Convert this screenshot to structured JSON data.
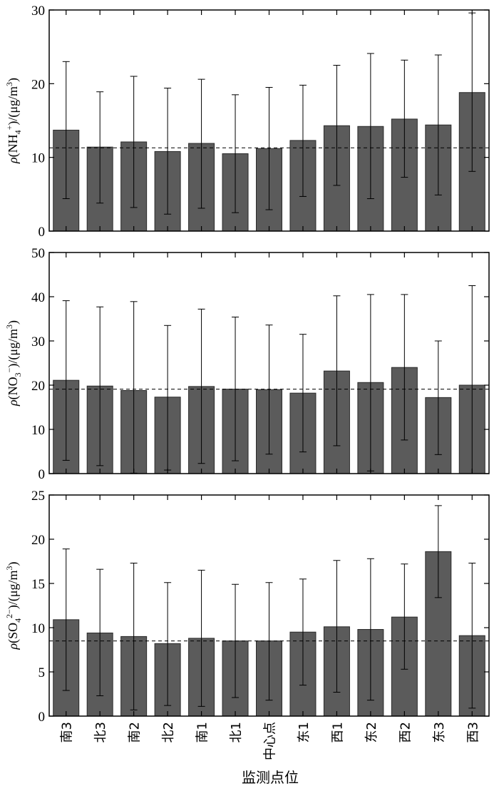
{
  "chart_data": [
    {
      "type": "bar",
      "ylabel_parts": {
        "rho": "ρ",
        "open": "(NH",
        "sub": "4",
        "sup": "+",
        "close": ")/(μg/m",
        "unit_sup": "3",
        "end": ")"
      },
      "ylim": [
        0,
        30
      ],
      "yticks": [
        0,
        10,
        20,
        30
      ],
      "reference_line": 11.3,
      "values": [
        13.7,
        11.4,
        12.1,
        10.8,
        11.9,
        10.5,
        11.2,
        12.3,
        14.3,
        14.2,
        15.2,
        14.4,
        18.8
      ],
      "error_low": [
        4.4,
        3.8,
        3.2,
        2.3,
        3.1,
        2.5,
        2.9,
        4.7,
        6.2,
        4.4,
        7.3,
        4.9,
        8.1
      ],
      "error_high": [
        23.0,
        18.9,
        21.0,
        19.4,
        20.6,
        18.5,
        19.5,
        19.8,
        22.5,
        24.1,
        23.2,
        23.9,
        29.6
      ]
    },
    {
      "type": "bar",
      "ylabel_parts": {
        "rho": "ρ",
        "open": "(NO",
        "sub": "3",
        "sup": "−",
        "close": ")/(μg/m",
        "unit_sup": "3",
        "end": ")"
      },
      "ylim": [
        0,
        50
      ],
      "yticks": [
        0,
        10,
        20,
        30,
        40,
        50
      ],
      "reference_line": 19.1,
      "values": [
        21.1,
        19.8,
        18.8,
        17.3,
        19.7,
        19.1,
        19.0,
        18.2,
        23.2,
        20.6,
        24.0,
        17.2,
        20.0
      ],
      "error_low": [
        3.0,
        1.8,
        0.1,
        0.8,
        2.3,
        2.9,
        4.4,
        4.9,
        6.3,
        0.6,
        7.6,
        4.3,
        0.0
      ],
      "error_high": [
        39.1,
        37.7,
        38.9,
        33.5,
        37.2,
        35.4,
        33.6,
        31.5,
        40.2,
        40.5,
        40.5,
        30.0,
        42.5
      ]
    },
    {
      "type": "bar",
      "ylabel_parts": {
        "rho": "ρ",
        "open": "(SO",
        "sub": "4",
        "sup": "2−",
        "close": ")/(μg/m",
        "unit_sup": "3",
        "end": ")"
      },
      "ylim": [
        0,
        25
      ],
      "yticks": [
        0,
        5,
        10,
        15,
        20,
        25
      ],
      "reference_line": 8.5,
      "values": [
        10.9,
        9.4,
        9.0,
        8.2,
        8.8,
        8.5,
        8.5,
        9.5,
        10.1,
        9.8,
        11.2,
        18.6,
        9.1
      ],
      "error_low": [
        2.9,
        2.3,
        0.7,
        1.2,
        1.1,
        2.1,
        1.8,
        3.5,
        2.7,
        1.8,
        5.3,
        13.4,
        0.9
      ],
      "error_high": [
        18.9,
        16.6,
        17.3,
        15.1,
        16.5,
        14.9,
        15.1,
        15.5,
        17.6,
        17.8,
        17.2,
        23.8,
        17.3
      ]
    }
  ],
  "categories": [
    "南3",
    "北3",
    "南2",
    "北2",
    "南1",
    "北1",
    "中心点",
    "东1",
    "西1",
    "东2",
    "西2",
    "东3",
    "西3"
  ],
  "xlabel": "监测点位",
  "colors": {
    "bar": "#5b5b5b",
    "axis": "#000000",
    "reference": "#000000"
  }
}
